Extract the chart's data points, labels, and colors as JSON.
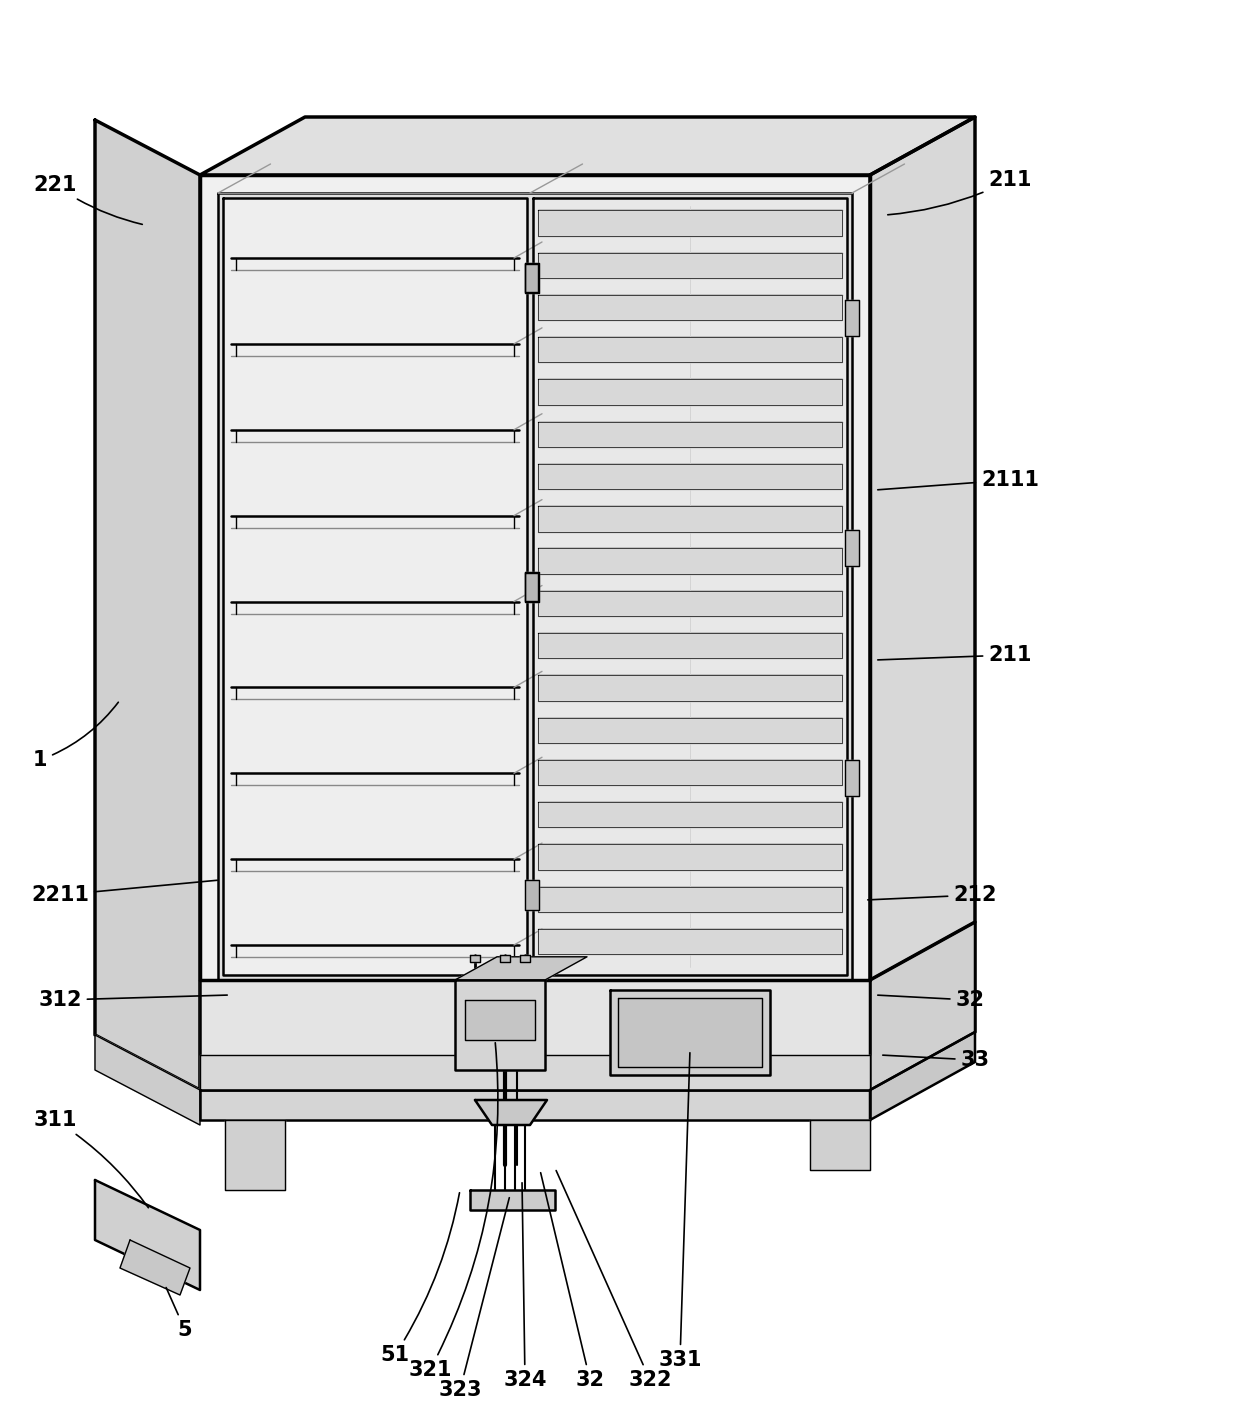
{
  "bg_color": "#ffffff",
  "line_color": "#000000",
  "lw_thin": 1.0,
  "lw_med": 1.8,
  "lw_thick": 2.5,
  "figsize": [
    12.4,
    14.05
  ],
  "dpi": 100,
  "gray_light": "#e8e8e8",
  "gray_mid": "#d4d4d4",
  "gray_dark": "#c0c0c0",
  "gray_side": "#cccccc",
  "white": "#f8f8f8",
  "ann_fontsize": 15,
  "ann_fontweight": "bold"
}
